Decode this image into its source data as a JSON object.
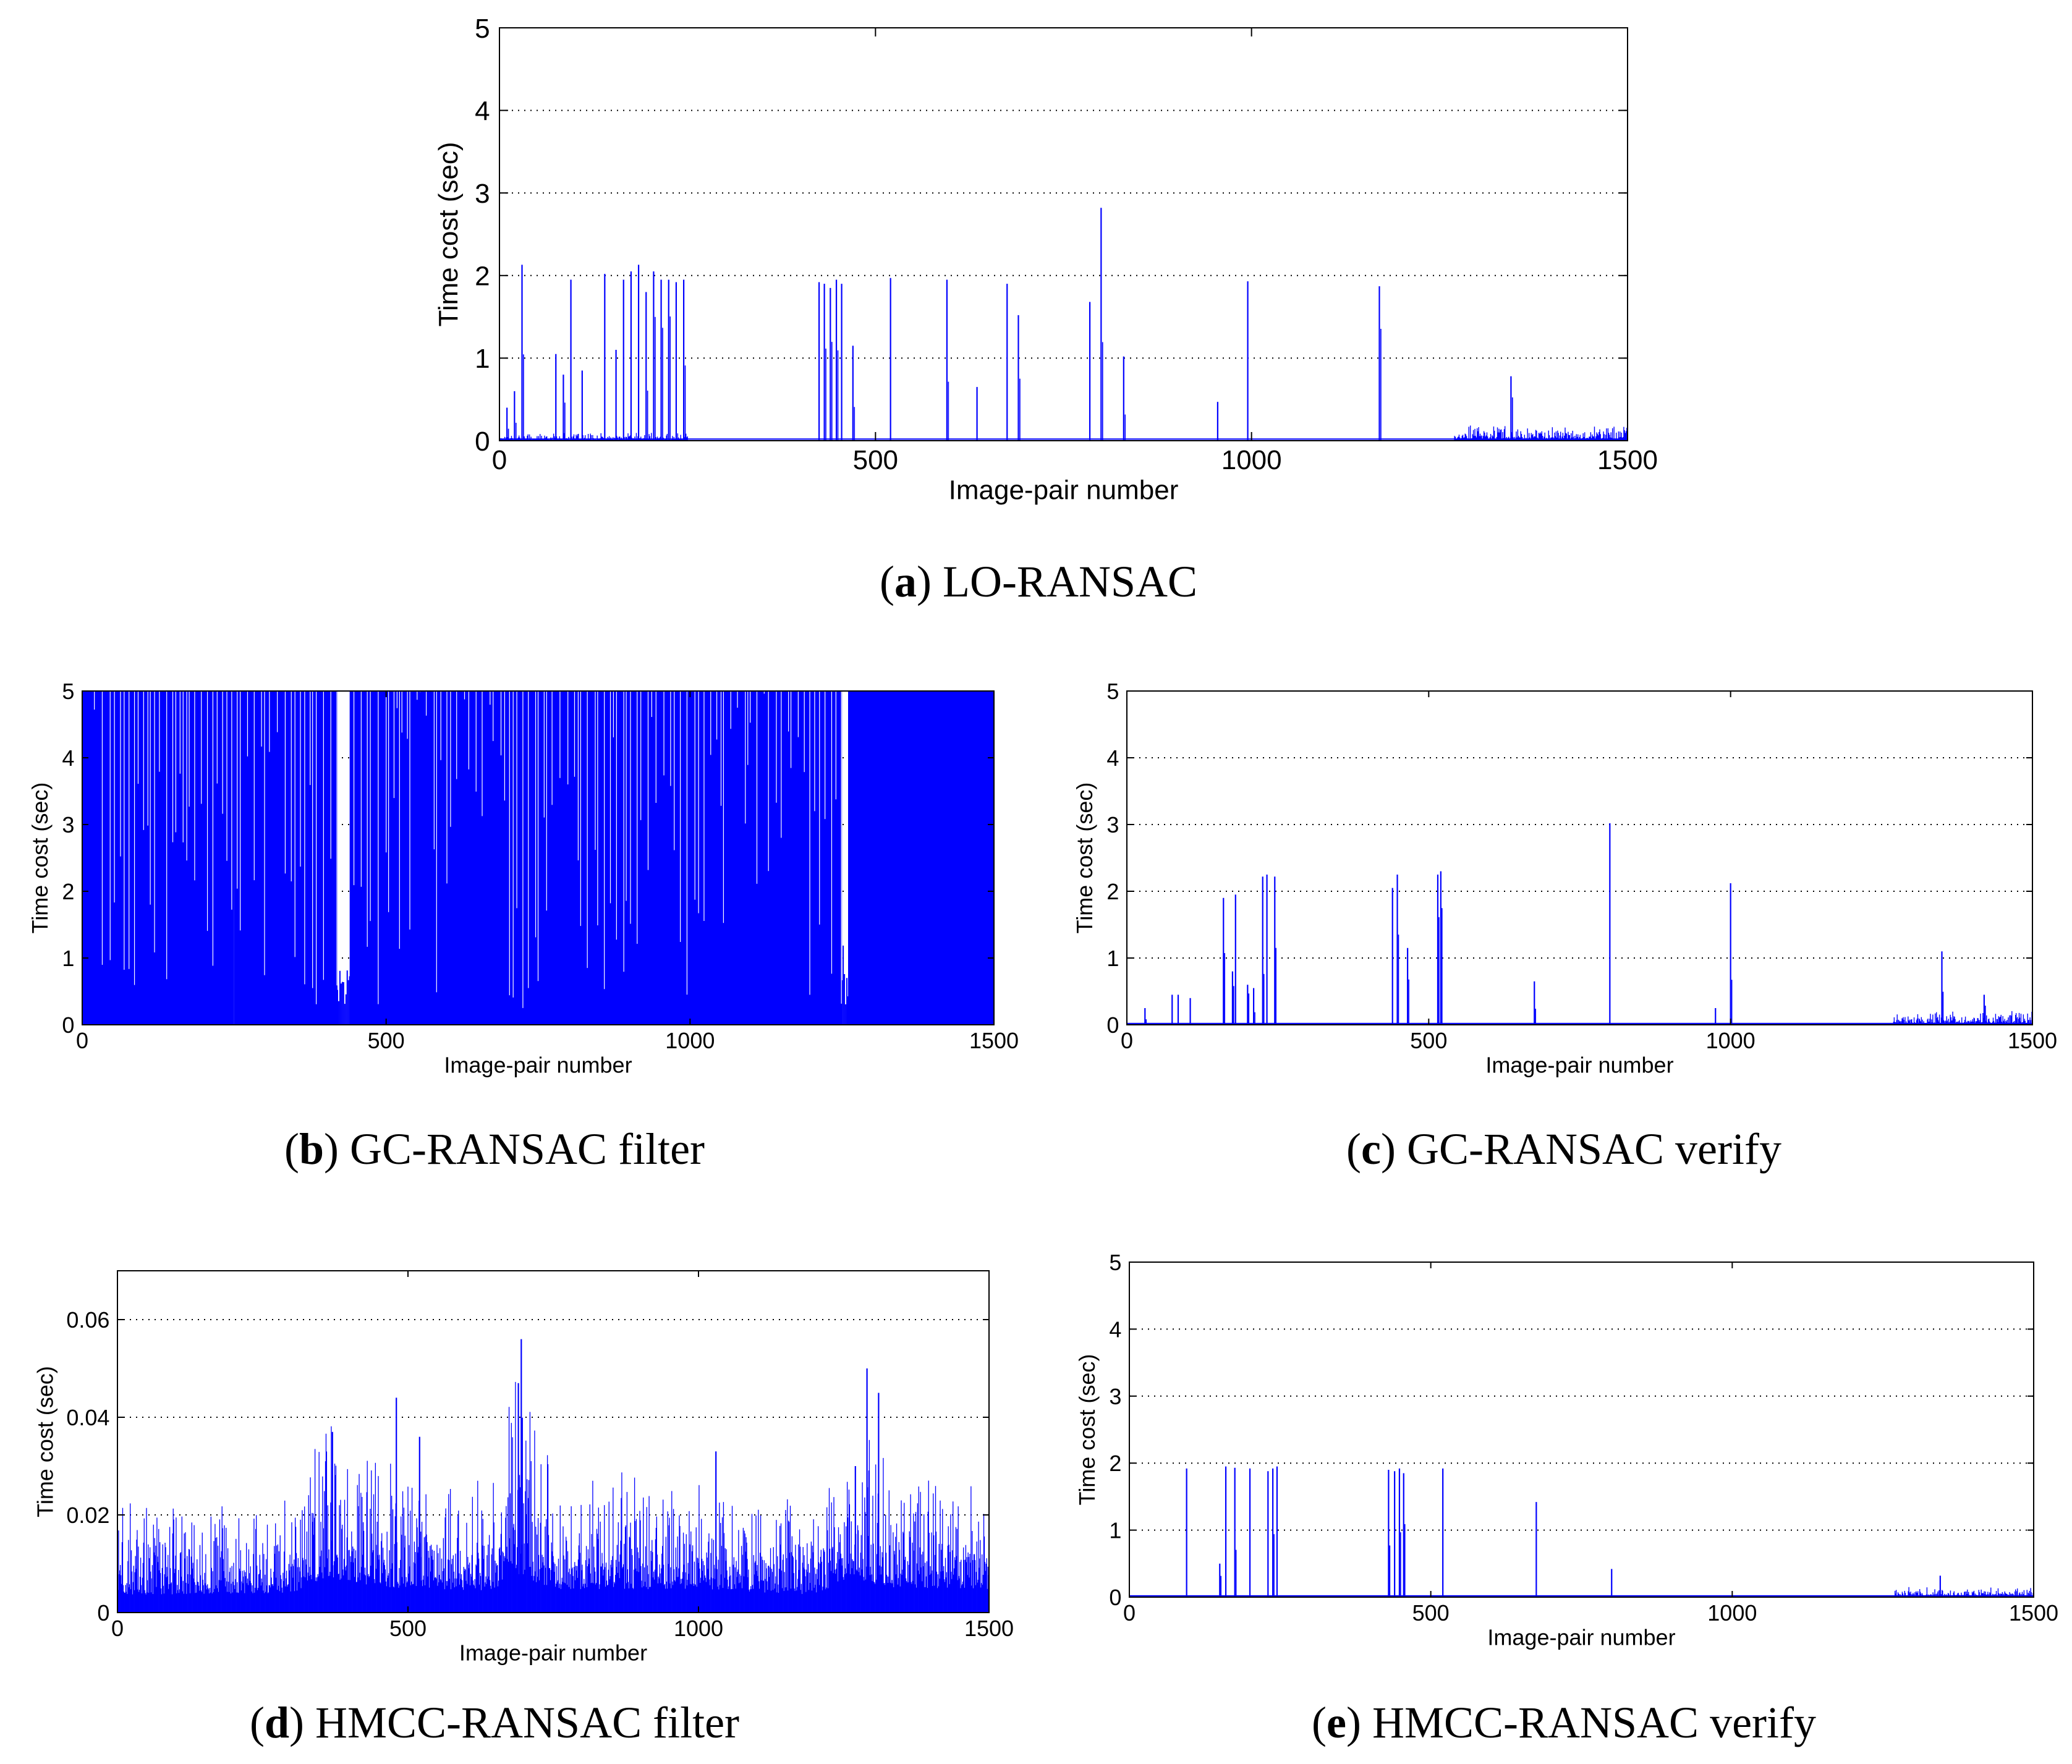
{
  "chart_data": [
    {
      "id": "a",
      "type": "line",
      "caption_letter": "a",
      "caption_text": "LO-RANSAC",
      "xlabel": "Image-pair number",
      "ylabel": "Time cost (sec)",
      "xlim": [
        0,
        1500
      ],
      "ylim": [
        0,
        5
      ],
      "xticks": [
        0,
        500,
        1000,
        1500
      ],
      "yticks": [
        0,
        1,
        2,
        3,
        4,
        5
      ],
      "ytick_labels": [
        "0",
        "1",
        "2",
        "3",
        "4",
        "5"
      ],
      "grid": "horizontal-dotted",
      "series_color": "#0000ff",
      "baseline": 0.02,
      "noise_regions": [
        [
          0,
          250,
          0.06
        ],
        [
          1270,
          1500,
          0.12
        ]
      ],
      "spikes": [
        [
          10,
          0.4
        ],
        [
          20,
          0.6
        ],
        [
          30,
          2.13
        ],
        [
          75,
          1.05
        ],
        [
          85,
          0.8
        ],
        [
          95,
          1.95
        ],
        [
          110,
          0.85
        ],
        [
          140,
          2.02
        ],
        [
          155,
          1.1
        ],
        [
          165,
          1.95
        ],
        [
          175,
          2.05
        ],
        [
          185,
          2.13
        ],
        [
          195,
          1.8
        ],
        [
          205,
          2.05
        ],
        [
          215,
          1.95
        ],
        [
          225,
          1.95
        ],
        [
          235,
          1.92
        ],
        [
          245,
          1.95
        ],
        [
          425,
          1.92
        ],
        [
          432,
          1.9
        ],
        [
          440,
          1.85
        ],
        [
          448,
          1.95
        ],
        [
          455,
          1.9
        ],
        [
          470,
          1.15
        ],
        [
          520,
          1.97
        ],
        [
          595,
          1.95
        ],
        [
          635,
          0.65
        ],
        [
          675,
          1.9
        ],
        [
          690,
          1.52
        ],
        [
          785,
          1.68
        ],
        [
          800,
          2.82
        ],
        [
          830,
          1.02
        ],
        [
          955,
          0.47
        ],
        [
          995,
          1.93
        ],
        [
          1170,
          1.87
        ],
        [
          1345,
          0.78
        ]
      ]
    },
    {
      "id": "b",
      "type": "line",
      "caption_letter": "b",
      "caption_text": "GC-RANSAC filter",
      "xlabel": "Image-pair number",
      "ylabel": "Time cost (sec)",
      "xlim": [
        0,
        1500
      ],
      "ylim": [
        0,
        5
      ],
      "xticks": [
        0,
        500,
        1000,
        1500
      ],
      "yticks": [
        0,
        1,
        2,
        3,
        4,
        5
      ],
      "ytick_labels": [
        "0",
        "1",
        "2",
        "3",
        "4",
        "5"
      ],
      "grid": "horizontal-dotted",
      "series_color": "#0000ff",
      "saturated_regions": [
        [
          0,
          250
        ],
        [
          250,
          420
        ],
        [
          440,
          1250
        ],
        [
          1260,
          1500
        ]
      ],
      "sparse_regions": [
        [
          420,
          440,
          0.9
        ],
        [
          1250,
          1260,
          1.0
        ]
      ]
    },
    {
      "id": "c",
      "type": "line",
      "caption_letter": "c",
      "caption_text": "GC-RANSAC verify",
      "xlabel": "Image-pair number",
      "ylabel": "Time cost (sec)",
      "xlim": [
        0,
        1500
      ],
      "ylim": [
        0,
        5
      ],
      "xticks": [
        0,
        500,
        1000,
        1500
      ],
      "yticks": [
        0,
        1,
        2,
        3,
        4,
        5
      ],
      "ytick_labels": [
        "0",
        "1",
        "2",
        "3",
        "4",
        "5"
      ],
      "grid": "horizontal-dotted",
      "series_color": "#0000ff",
      "baseline": 0.02,
      "noise_regions": [
        [
          1270,
          1500,
          0.12
        ]
      ],
      "spikes": [
        [
          30,
          0.25
        ],
        [
          75,
          0.45
        ],
        [
          85,
          0.45
        ],
        [
          105,
          0.4
        ],
        [
          160,
          1.9
        ],
        [
          175,
          0.8
        ],
        [
          180,
          1.95
        ],
        [
          200,
          0.6
        ],
        [
          210,
          0.55
        ],
        [
          225,
          2.22
        ],
        [
          232,
          2.25
        ],
        [
          245,
          2.22
        ],
        [
          440,
          2.05
        ],
        [
          448,
          2.25
        ],
        [
          465,
          1.15
        ],
        [
          515,
          2.25
        ],
        [
          520,
          2.3
        ],
        [
          675,
          0.65
        ],
        [
          800,
          3.02
        ],
        [
          975,
          0.25
        ],
        [
          1000,
          2.12
        ],
        [
          1350,
          1.1
        ],
        [
          1420,
          0.45
        ]
      ]
    },
    {
      "id": "d",
      "type": "line",
      "caption_letter": "d",
      "caption_text": "HMCC-RANSAC filter",
      "xlabel": "Image-pair number",
      "ylabel": "Time cost (sec)",
      "xlim": [
        0,
        1500
      ],
      "ylim": [
        0,
        0.07
      ],
      "xticks": [
        0,
        500,
        1000,
        1500
      ],
      "yticks": [
        0,
        0.02,
        0.04,
        0.06
      ],
      "ytick_labels": [
        "0",
        "0.02",
        "0.04",
        "0.06"
      ],
      "grid": "horizontal-dotted",
      "series_color": "#0000ff",
      "noise_levels": [
        [
          0,
          0.009
        ],
        [
          300,
          0.01
        ],
        [
          360,
          0.018
        ],
        [
          450,
          0.013
        ],
        [
          650,
          0.011
        ],
        [
          680,
          0.02
        ],
        [
          750,
          0.012
        ],
        [
          1000,
          0.012
        ],
        [
          1200,
          0.009
        ],
        [
          1260,
          0.018
        ],
        [
          1320,
          0.013
        ],
        [
          1500,
          0.012
        ]
      ],
      "spikes": [
        [
          370,
          0.037
        ],
        [
          480,
          0.044
        ],
        [
          520,
          0.036
        ],
        [
          695,
          0.056
        ],
        [
          690,
          0.047
        ],
        [
          1030,
          0.033
        ],
        [
          1290,
          0.05
        ],
        [
          1310,
          0.045
        ],
        [
          1270,
          0.03
        ]
      ]
    },
    {
      "id": "e",
      "type": "line",
      "caption_letter": "e",
      "caption_text": "HMCC-RANSAC verify",
      "xlabel": "Image-pair number",
      "ylabel": "Time cost (sec)",
      "xlim": [
        0,
        1500
      ],
      "ylim": [
        0,
        5
      ],
      "xticks": [
        0,
        500,
        1000,
        1500
      ],
      "yticks": [
        0,
        1,
        2,
        3,
        4,
        5
      ],
      "ytick_labels": [
        "0",
        "1",
        "2",
        "3",
        "4",
        "5"
      ],
      "grid": "horizontal-dotted",
      "series_color": "#0000ff",
      "baseline": 0.02,
      "noise_regions": [
        [
          1270,
          1500,
          0.1
        ]
      ],
      "spikes": [
        [
          95,
          1.92
        ],
        [
          150,
          0.5
        ],
        [
          160,
          1.95
        ],
        [
          175,
          1.93
        ],
        [
          200,
          1.92
        ],
        [
          230,
          1.88
        ],
        [
          238,
          1.92
        ],
        [
          245,
          1.95
        ],
        [
          430,
          1.9
        ],
        [
          440,
          1.88
        ],
        [
          448,
          1.92
        ],
        [
          455,
          1.85
        ],
        [
          520,
          1.92
        ],
        [
          675,
          1.42
        ],
        [
          800,
          0.42
        ],
        [
          1345,
          0.32
        ]
      ]
    }
  ]
}
